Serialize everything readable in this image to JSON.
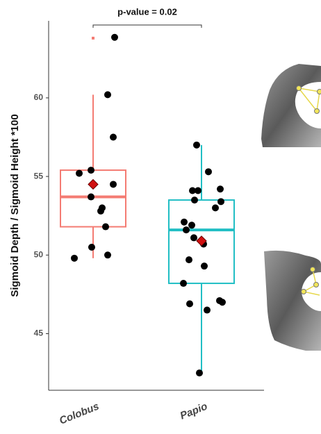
{
  "chart_data": {
    "type": "box",
    "annotation": "p-value = 0.02",
    "ylabel": "Sigmoid Depth / Sigmoid Height *100",
    "categories": [
      "Colobus",
      "Papio"
    ],
    "colors": [
      "#f47b72",
      "#20bec4"
    ],
    "ylim": [
      41.4,
      64.9
    ],
    "yticks": [
      45,
      50,
      55,
      60
    ],
    "boxes": [
      {
        "whislo": 49.8,
        "q1": 51.8,
        "median": 53.7,
        "q3": 55.4,
        "whishi": 60.2,
        "mean": 54.5,
        "fliers": [
          63.8
        ],
        "points": [
          63.85,
          60.2,
          57.5,
          55.2,
          55.4,
          54.5,
          53.7,
          53.0,
          52.8,
          51.8,
          50.5,
          49.8,
          50.0
        ]
      },
      {
        "whislo": 42.5,
        "q1": 48.2,
        "median": 51.6,
        "q3": 53.5,
        "whishi": 57.0,
        "mean": 50.9,
        "fliers": [],
        "points": [
          57.0,
          55.3,
          54.1,
          54.1,
          54.2,
          53.5,
          53.4,
          53.0,
          52.1,
          51.9,
          51.6,
          51.1,
          50.7,
          49.7,
          49.3,
          48.2,
          46.9,
          47.1,
          47.0,
          46.5,
          42.5
        ]
      }
    ]
  }
}
